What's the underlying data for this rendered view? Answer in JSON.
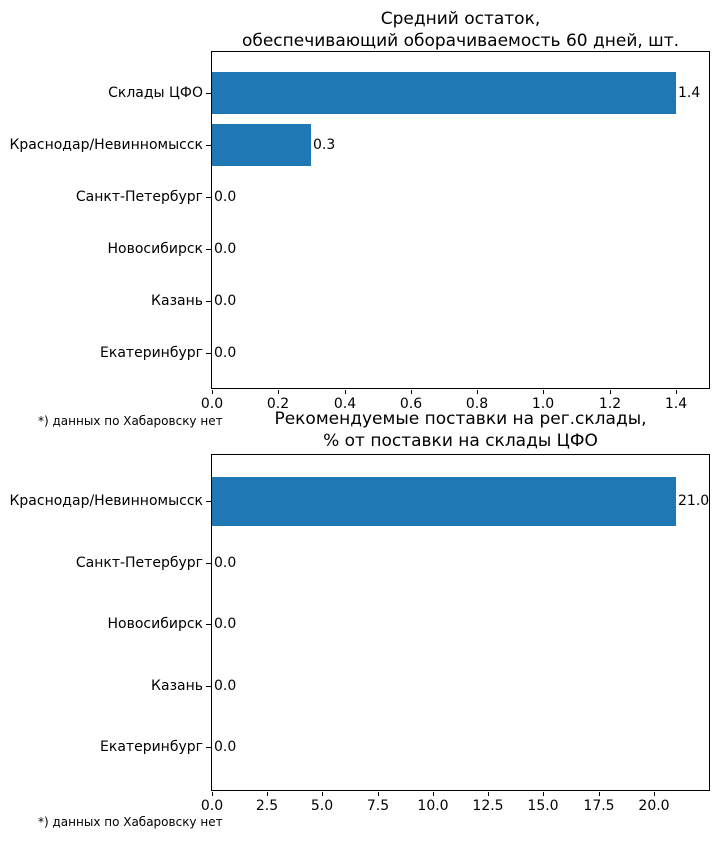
{
  "figure": {
    "background": "#ffffff",
    "bar_color": "#1f77b4",
    "axis_color": "#000000",
    "text_color": "#000000"
  },
  "chart_data": [
    {
      "type": "bar",
      "orientation": "horizontal",
      "title": "Средний остаток,\nобеспечивающий оборачиваемость 60 дней, шт.",
      "categories": [
        "Склады ЦФО",
        "Краснодар/Невинномысск",
        "Санкт-Петербург",
        "Новосибирск",
        "Казань",
        "Екатеринбург"
      ],
      "values": [
        1.4,
        0.3,
        0,
        0,
        0,
        0
      ],
      "value_labels": [
        "1.4",
        "0.3",
        "0.0",
        "0.0",
        "0.0",
        "0.0"
      ],
      "xlabel": "",
      "ylabel": "",
      "xlim": [
        0,
        1.5
      ],
      "xticks": [
        0,
        0.2,
        0.4,
        0.6,
        0.8,
        1.0,
        1.2,
        1.4
      ],
      "xtick_labels": [
        "0.0",
        "0.2",
        "0.4",
        "0.6",
        "0.8",
        "1.0",
        "1.2",
        "1.4"
      ],
      "grid": false,
      "legend": null,
      "bar_color": "#1f77b4",
      "footnote": "*) данных по Хабаровску нет"
    },
    {
      "type": "bar",
      "orientation": "horizontal",
      "title": "Рекомендуемые поставки на рег.склады,\n% от поставки на склады ЦФО",
      "categories": [
        "Краснодар/Невинномысск",
        "Санкт-Петербург",
        "Новосибирск",
        "Казань",
        "Екатеринбург"
      ],
      "values": [
        21,
        0,
        0,
        0,
        0
      ],
      "value_labels": [
        "21.0",
        "0.0",
        "0.0",
        "0.0",
        "0.0"
      ],
      "xlabel": "",
      "ylabel": "",
      "xlim": [
        0,
        22.5
      ],
      "xticks": [
        0,
        2.5,
        5,
        7.5,
        10,
        12.5,
        15,
        17.5,
        20
      ],
      "xtick_labels": [
        "0.0",
        "2.5",
        "5.0",
        "7.5",
        "10.0",
        "12.5",
        "15.0",
        "17.5",
        "20.0"
      ],
      "grid": false,
      "legend": null,
      "bar_color": "#1f77b4",
      "footnote": "*) данных по Хабаровску нет"
    }
  ]
}
